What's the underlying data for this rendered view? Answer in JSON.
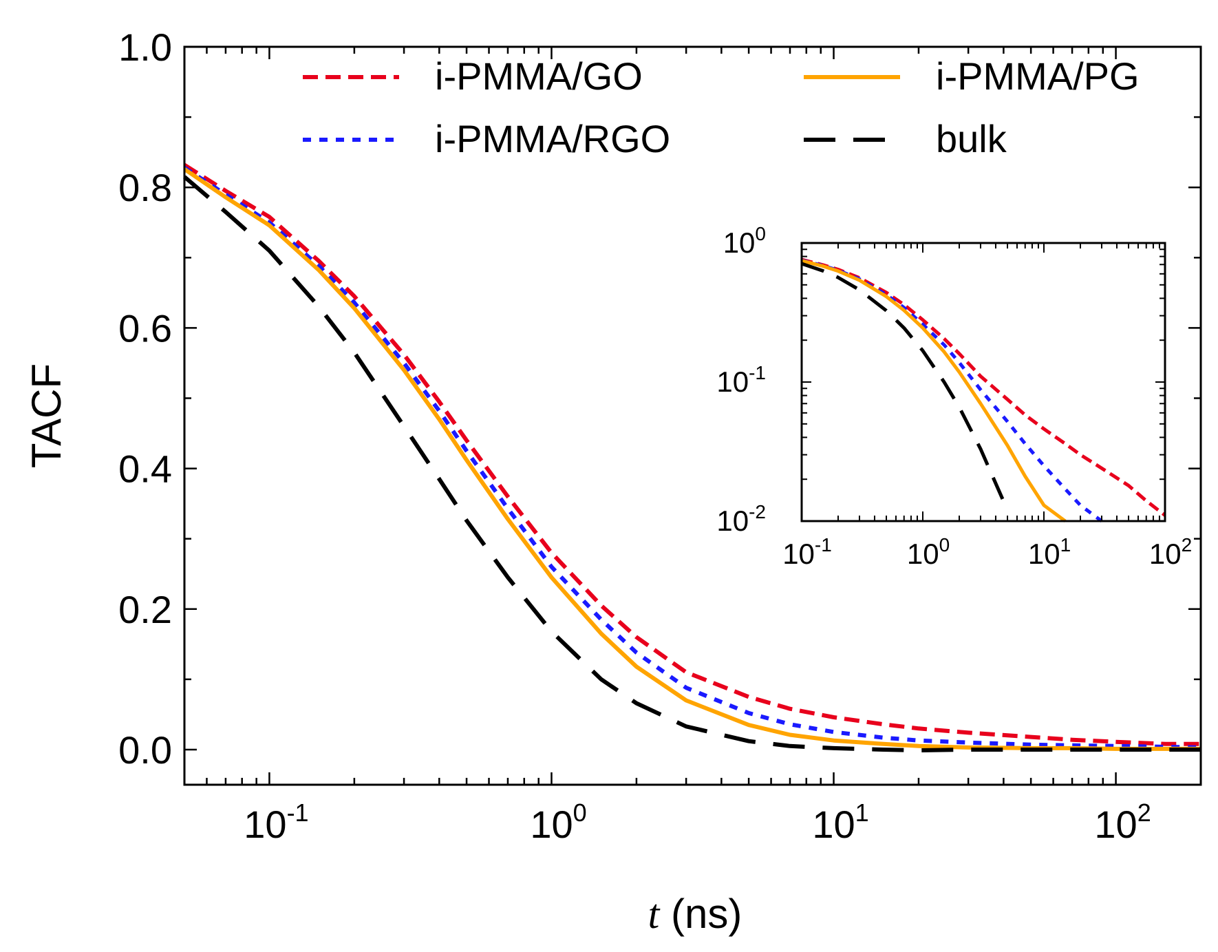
{
  "chart_data": [
    {
      "type": "line",
      "title": "",
      "xlabel_var": "t",
      "xlabel_unit": " (ns)",
      "ylabel": "TACF",
      "xscale": "log",
      "xlim": [
        0.05,
        200
      ],
      "ylim": [
        -0.05,
        1.0
      ],
      "xticks": [
        {
          "base": "10",
          "exp": "-1",
          "value": 0.1
        },
        {
          "base": "10",
          "exp": "0",
          "value": 1
        },
        {
          "base": "10",
          "exp": "1",
          "value": 10
        },
        {
          "base": "10",
          "exp": "2",
          "value": 100
        }
      ],
      "yticks": [
        {
          "label": "0.0",
          "value": 0.0
        },
        {
          "label": "0.2",
          "value": 0.2
        },
        {
          "label": "0.4",
          "value": 0.4
        },
        {
          "label": "0.6",
          "value": 0.6
        },
        {
          "label": "0.8",
          "value": 0.8
        },
        {
          "label": "1.0",
          "value": 1.0
        }
      ],
      "legend_position": "top",
      "x": [
        0.05,
        0.07,
        0.1,
        0.15,
        0.2,
        0.3,
        0.4,
        0.5,
        0.7,
        1.0,
        1.5,
        2.0,
        3.0,
        5.0,
        7.0,
        10.0,
        15.0,
        20.0,
        30.0,
        50.0,
        70.0,
        100.0,
        150.0,
        200.0
      ],
      "series": [
        {
          "name": "i-PMMA/GO",
          "color": "#e8001c",
          "style": "dashed",
          "values": [
            0.832,
            0.795,
            0.758,
            0.695,
            0.645,
            0.562,
            0.495,
            0.44,
            0.36,
            0.28,
            0.205,
            0.16,
            0.11,
            0.075,
            0.058,
            0.046,
            0.036,
            0.03,
            0.024,
            0.018,
            0.014,
            0.011,
            0.008,
            0.008
          ]
        },
        {
          "name": "i-PMMA/RGO",
          "color": "#1a1aff",
          "style": "dotted",
          "values": [
            0.828,
            0.79,
            0.75,
            0.688,
            0.636,
            0.55,
            0.482,
            0.425,
            0.343,
            0.26,
            0.185,
            0.138,
            0.088,
            0.052,
            0.036,
            0.025,
            0.017,
            0.013,
            0.01,
            0.007,
            0.006,
            0.005,
            0.004,
            0.003
          ]
        },
        {
          "name": "i-PMMA/PG",
          "color": "#ffa400",
          "style": "solid",
          "values": [
            0.826,
            0.786,
            0.746,
            0.682,
            0.628,
            0.54,
            0.47,
            0.412,
            0.328,
            0.245,
            0.165,
            0.118,
            0.07,
            0.035,
            0.021,
            0.013,
            0.008,
            0.005,
            0.003,
            0.002,
            0.002,
            0.001,
            0.001,
            0.001
          ]
        },
        {
          "name": "bulk",
          "color": "#000000",
          "style": "longdash",
          "values": [
            0.815,
            0.765,
            0.71,
            0.63,
            0.565,
            0.46,
            0.385,
            0.326,
            0.245,
            0.168,
            0.1,
            0.066,
            0.033,
            0.012,
            0.005,
            0.002,
            0.0,
            -0.001,
            0.0,
            0.0,
            0.0,
            0.0,
            0.0,
            0.0
          ]
        }
      ]
    },
    {
      "type": "line",
      "role": "inset",
      "xscale": "log",
      "yscale": "log",
      "xlim": [
        0.1,
        100
      ],
      "ylim": [
        0.01,
        1.0
      ],
      "xticks": [
        {
          "base": "10",
          "exp": "-1",
          "value": 0.1
        },
        {
          "base": "10",
          "exp": "0",
          "value": 1
        },
        {
          "base": "10",
          "exp": "1",
          "value": 10
        },
        {
          "base": "10",
          "exp": "2",
          "value": 100
        }
      ],
      "yticks": [
        {
          "base": "10",
          "exp": "0",
          "value": 1.0
        },
        {
          "base": "10",
          "exp": "-1",
          "value": 0.1
        },
        {
          "base": "10",
          "exp": "-2",
          "value": 0.01
        }
      ],
      "x": [
        0.1,
        0.15,
        0.2,
        0.3,
        0.5,
        0.7,
        1.0,
        1.5,
        2.0,
        3.0,
        5.0,
        7.0,
        10.0,
        15.0,
        20.0,
        30.0,
        50.0,
        70.0,
        100.0
      ],
      "series": [
        {
          "name": "i-PMMA/GO",
          "color": "#e8001c",
          "style": "dashed",
          "values": [
            0.76,
            0.695,
            0.645,
            0.562,
            0.44,
            0.36,
            0.28,
            0.205,
            0.16,
            0.11,
            0.075,
            0.058,
            0.046,
            0.036,
            0.03,
            0.024,
            0.018,
            0.014,
            0.011
          ]
        },
        {
          "name": "i-PMMA/RGO",
          "color": "#1a1aff",
          "style": "dotted",
          "values": [
            0.75,
            0.688,
            0.636,
            0.55,
            0.425,
            0.343,
            0.26,
            0.185,
            0.138,
            0.088,
            0.052,
            0.036,
            0.025,
            0.017,
            0.013,
            0.01,
            null,
            null,
            null
          ]
        },
        {
          "name": "i-PMMA/PG",
          "color": "#ffa400",
          "style": "solid",
          "values": [
            0.746,
            0.682,
            0.628,
            0.54,
            0.412,
            0.328,
            0.245,
            0.165,
            0.118,
            0.07,
            0.035,
            0.021,
            0.013,
            0.01,
            null,
            null,
            null,
            null,
            null
          ]
        },
        {
          "name": "bulk",
          "color": "#000000",
          "style": "longdash",
          "values": [
            0.71,
            0.63,
            0.565,
            0.46,
            0.326,
            0.245,
            0.168,
            0.1,
            0.066,
            0.033,
            0.012,
            null,
            null,
            null,
            null,
            null,
            null,
            null,
            null
          ]
        }
      ]
    }
  ]
}
